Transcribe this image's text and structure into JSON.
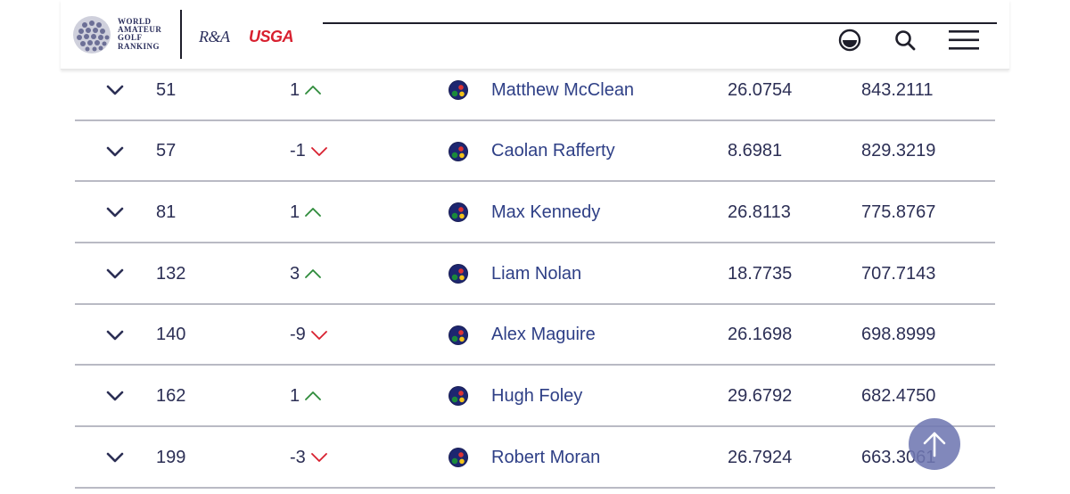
{
  "header": {
    "brand_lines": [
      "WORLD",
      "AMATEUR",
      "GOLF",
      "RANKING"
    ],
    "ra_logo": "R&A",
    "usga_logo": "USGA",
    "icons": [
      "theme-toggle-icon",
      "search-icon",
      "hamburger-menu-icon"
    ]
  },
  "rows": [
    {
      "rank": "51",
      "movement": "1",
      "direction": "up",
      "name": "Matthew McClean",
      "average": "26.0754",
      "total": "843.2111"
    },
    {
      "rank": "57",
      "movement": "-1",
      "direction": "down",
      "name": "Caolan Rafferty",
      "average": "8.6981",
      "total": "829.3219"
    },
    {
      "rank": "81",
      "movement": "1",
      "direction": "up",
      "name": "Max Kennedy",
      "average": "26.8113",
      "total": "775.8767"
    },
    {
      "rank": "132",
      "movement": "3",
      "direction": "up",
      "name": "Liam Nolan",
      "average": "18.7735",
      "total": "707.7143"
    },
    {
      "rank": "140",
      "movement": "-9",
      "direction": "down",
      "name": "Alex Maguire",
      "average": "26.1698",
      "total": "698.8999"
    },
    {
      "rank": "162",
      "movement": "1",
      "direction": "up",
      "name": "Hugh Foley",
      "average": "29.6792",
      "total": "682.4750"
    },
    {
      "rank": "199",
      "movement": "-3",
      "direction": "down",
      "name": "Robert Moran",
      "average": "26.7924",
      "total": "663.3061"
    }
  ],
  "colors": {
    "text": "#2c2f55",
    "name_link": "#2e3f86",
    "up_arrow": "#2e8b3a",
    "down_arrow": "#d8202f",
    "scroll_button": "#7078b2"
  }
}
